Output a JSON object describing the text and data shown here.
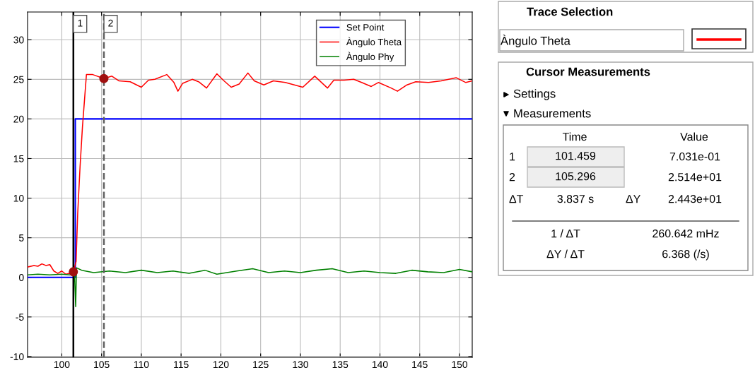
{
  "chart_data": [
    {
      "type": "line",
      "xlim": [
        95.7,
        151.6
      ],
      "ylim": [
        -10.1,
        33.5
      ],
      "xticks": [
        100,
        105,
        110,
        115,
        120,
        125,
        130,
        135,
        140,
        145,
        150
      ],
      "yticks": [
        -10,
        -5,
        0,
        5,
        10,
        15,
        20,
        25,
        30
      ],
      "grid": true,
      "legend": "top right",
      "marker": "none",
      "line_style": "solid",
      "series": [
        {
          "name": "Set Point",
          "color": "#0000ff",
          "type": "step",
          "x": [
            95.7,
            101.7,
            151.6
          ],
          "values": [
            0,
            20,
            20
          ]
        },
        {
          "name": "Àngulo Theta",
          "color": "#ff0000",
          "x": [
            95.7,
            96.5,
            97,
            97.5,
            98,
            98.5,
            99,
            99.5,
            100,
            100.5,
            101,
            101.459,
            101.8,
            102,
            102.3,
            102.6,
            103.1,
            103.9,
            105.296,
            106.3,
            107.2,
            108.6,
            110,
            110.9,
            111.7,
            113.2,
            114.1,
            114.6,
            115.2,
            116.4,
            117.2,
            118.2,
            119.5,
            120.3,
            121.3,
            122.3,
            123.4,
            124.2,
            125.4,
            126.6,
            128.1,
            130.3,
            131.8,
            133.4,
            134.2,
            135.5,
            136.7,
            137.7,
            138.9,
            139.8,
            141.4,
            142.2,
            143.4,
            144.5,
            146.1,
            147.7,
            149.6,
            150.8,
            151.6
          ],
          "values": [
            1.3,
            1.5,
            1.4,
            1.7,
            1.5,
            1.6,
            0.8,
            0.5,
            0.8,
            0.4,
            0.5,
            0.7,
            2,
            8,
            14,
            19,
            25.6,
            25.6,
            25.1,
            25.4,
            24.8,
            24.7,
            24,
            24.9,
            25,
            25.6,
            24.6,
            23.5,
            24.5,
            25,
            24.7,
            23.9,
            25.7,
            24.9,
            24,
            24.4,
            25.8,
            24.8,
            24.3,
            24.8,
            24.6,
            24,
            25.4,
            23.9,
            24.9,
            24.9,
            25,
            24.6,
            24.1,
            24.6,
            23.9,
            23.5,
            24.3,
            24.7,
            24.6,
            24.8,
            25.2,
            24.6,
            24.8
          ]
        },
        {
          "name": "Àngulo Phy",
          "color": "#008000",
          "x": [
            95.7,
            97,
            98.5,
            100,
            101,
            101.6,
            101.75,
            101.85,
            102.5,
            104,
            106,
            108,
            110,
            112,
            114,
            116,
            118,
            119.5,
            122,
            124,
            126,
            128,
            130,
            132,
            134,
            136,
            138,
            140,
            142,
            144,
            146,
            148,
            150,
            151.6
          ],
          "values": [
            0.3,
            0.4,
            0.3,
            0.4,
            0.3,
            0.5,
            -3.7,
            1.2,
            0.9,
            0.6,
            0.8,
            0.6,
            0.9,
            0.6,
            0.8,
            0.5,
            0.9,
            0.4,
            0.8,
            1.1,
            0.6,
            0.8,
            0.6,
            0.9,
            1.1,
            0.6,
            0.8,
            0.6,
            0.5,
            0.9,
            0.7,
            0.6,
            1,
            0.7
          ]
        },
        {
          "type": "scatter",
          "color": "#a01010",
          "marker": "circle",
          "x": [
            101.459,
            105.296
          ],
          "values": [
            0.7,
            25.1
          ]
        }
      ],
      "ref_lines": [
        {
          "axis": "x",
          "value": 101.459,
          "color": "#000000",
          "line_style": "solid"
        },
        {
          "axis": "x",
          "value": 105.296,
          "color": "#606060",
          "line_style": "dashed"
        }
      ],
      "annotations": [
        {
          "text": "1",
          "x": 101.459,
          "y": 32
        },
        {
          "text": "2",
          "x": 105.296,
          "y": 32
        }
      ]
    },
    {
      "type": "other",
      "title": "Trace Selection",
      "subtitle": "Cursor Measurements",
      "annotations": [
        "Àngulo Theta",
        "Settings",
        "Measurements",
        "Time",
        "Value",
        "1",
        "101.459",
        "7.031e-01",
        "2",
        "105.296",
        "2.514e+01",
        "ΔT",
        "3.837 s",
        "ΔY",
        "2.443e+01",
        "1 / ΔT",
        "260.642 mHz",
        "ΔY / ΔT",
        "6.368 (/s)"
      ],
      "color": "#ff0000"
    }
  ]
}
